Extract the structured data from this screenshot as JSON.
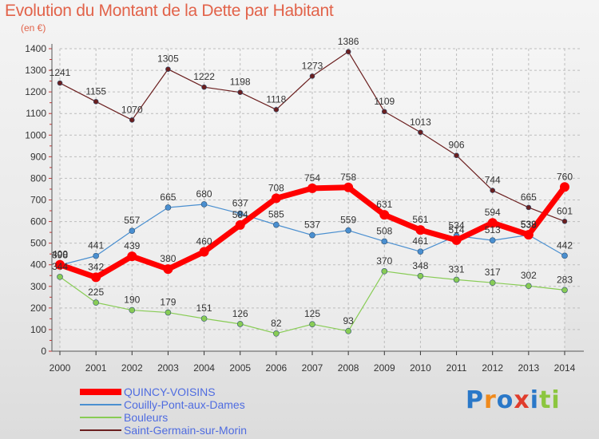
{
  "chart_data": {
    "type": "line",
    "title": "Evolution du Montant de la Dette par Habitant",
    "subtitle": "(en €)",
    "xlabel": "",
    "ylabel": "",
    "categories": [
      "2000",
      "2001",
      "2002",
      "2003",
      "2004",
      "2005",
      "2006",
      "2007",
      "2008",
      "2009",
      "2010",
      "2011",
      "2012",
      "2013",
      "2014"
    ],
    "ylim": [
      0,
      1400
    ],
    "yticks": [
      0,
      100,
      200,
      300,
      400,
      500,
      600,
      700,
      800,
      900,
      1000,
      1100,
      1200,
      1300,
      1400
    ],
    "grid": true,
    "legend_position": "bottom-left",
    "series": [
      {
        "name": "QUINCY-VOISINS",
        "color": "#ff0000",
        "values": [
          400,
          342,
          439,
          380,
          460,
          584,
          708,
          754,
          758,
          631,
          561,
          514,
          594,
          539,
          760
        ]
      },
      {
        "name": "Couilly-Pont-aux-Dames",
        "color": "#4a8fd0",
        "values": [
          398,
          441,
          557,
          665,
          680,
          637,
          585,
          537,
          559,
          508,
          461,
          534,
          513,
          538,
          442
        ]
      },
      {
        "name": "Bouleurs",
        "color": "#88cc55",
        "values": [
          344,
          225,
          190,
          179,
          151,
          126,
          82,
          125,
          93,
          370,
          348,
          331,
          317,
          302,
          283
        ]
      },
      {
        "name": "Saint-Germain-sur-Morin",
        "color": "#6b1f1f",
        "values": [
          1241,
          1155,
          1070,
          1305,
          1222,
          1198,
          1118,
          1273,
          1386,
          1109,
          1013,
          906,
          744,
          665,
          601
        ]
      }
    ]
  },
  "logo": {
    "letters": [
      "P",
      "r",
      "o",
      "x",
      "i",
      "t",
      "i"
    ],
    "colors": [
      "#2a78c8",
      "#f08a1c",
      "#2a78c8",
      "#e03c2c",
      "#2a78c8",
      "#8cc63f",
      "#8cc63f"
    ]
  }
}
